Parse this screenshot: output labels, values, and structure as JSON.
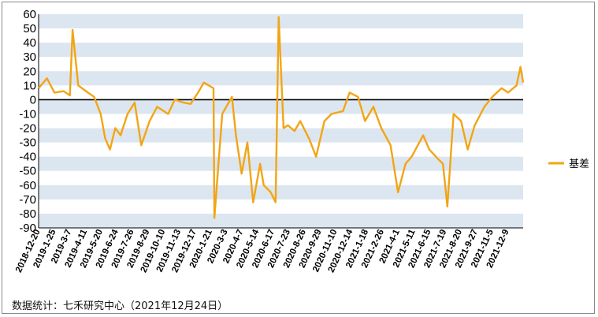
{
  "footer": {
    "source": "数据统计：七禾研究中心（2021年12月24日）"
  },
  "chart_data": {
    "type": "line",
    "title": "",
    "xlabel": "",
    "ylabel": "",
    "ylim": [
      -90,
      60
    ],
    "yticks": [
      60,
      50,
      40,
      30,
      20,
      10,
      0,
      -10,
      -20,
      -30,
      -40,
      -50,
      -60,
      -70,
      -80,
      -90
    ],
    "grid": "horizontal alternating bands",
    "legend_position": "right",
    "colors": {
      "series": "#F2A514",
      "band": "#DCE6F1",
      "zero_line": "#000000"
    },
    "x_tick_labels": [
      "2018-12-20",
      "2019-1-25",
      "2019-3-7",
      "2019-4-11",
      "2019-5-20",
      "2019-6-24",
      "2019-7-26",
      "2019-8-29",
      "2019-10-10",
      "2019-11-13",
      "2019-12-17",
      "2020-1-21",
      "2020-3-3",
      "2020-4-7",
      "2020-5-14",
      "2020-6-17",
      "2020-7-23",
      "2020-8-26",
      "2020-9-29",
      "2020-11-10",
      "2020-12-14",
      "2021-1-18",
      "2021-2-26",
      "2021-4-1",
      "2021-5-11",
      "2021-6-15",
      "2021-7-19",
      "2021-8-20",
      "2021-9-27",
      "2021-11-5",
      "2021-12-9"
    ],
    "series": [
      {
        "name": "基差",
        "color": "#F2A514",
        "x": [
          "2018-12-20",
          "2019-1-8",
          "2019-1-25",
          "2019-2-15",
          "2019-3-1",
          "2019-3-7",
          "2019-3-20",
          "2019-4-11",
          "2019-4-25",
          "2019-5-10",
          "2019-5-20",
          "2019-5-31",
          "2019-6-12",
          "2019-6-24",
          "2019-7-10",
          "2019-7-26",
          "2019-8-10",
          "2019-8-29",
          "2019-9-15",
          "2019-10-10",
          "2019-10-25",
          "2019-11-13",
          "2019-11-30",
          "2019-12-17",
          "2019-12-30",
          "2020-1-21",
          "2020-1-23",
          "2020-2-10",
          "2020-3-3",
          "2020-3-12",
          "2020-3-25",
          "2020-4-7",
          "2020-4-20",
          "2020-5-6",
          "2020-5-14",
          "2020-5-30",
          "2020-6-10",
          "2020-6-17",
          "2020-6-28",
          "2020-7-8",
          "2020-7-23",
          "2020-8-5",
          "2020-8-26",
          "2020-9-10",
          "2020-9-29",
          "2020-10-15",
          "2020-11-10",
          "2020-11-25",
          "2020-12-14",
          "2020-12-30",
          "2021-1-18",
          "2021-2-5",
          "2021-2-26",
          "2021-3-15",
          "2021-4-1",
          "2021-4-15",
          "2021-5-11",
          "2021-5-25",
          "2021-6-15",
          "2021-6-25",
          "2021-7-5",
          "2021-7-19",
          "2021-8-5",
          "2021-8-20",
          "2021-9-5",
          "2021-9-27",
          "2021-10-15",
          "2021-11-5",
          "2021-11-20",
          "2021-12-9",
          "2021-12-18",
          "2021-12-24"
        ],
        "values": [
          8,
          15,
          5,
          6,
          3,
          49,
          10,
          5,
          2,
          -10,
          -27,
          -35,
          -20,
          -25,
          -10,
          -2,
          -32,
          -15,
          -5,
          -10,
          0,
          -2,
          -3,
          5,
          12,
          8,
          -83,
          -10,
          2,
          -25,
          -52,
          -30,
          -72,
          -45,
          -60,
          -65,
          -72,
          58,
          -20,
          -18,
          -22,
          -15,
          -28,
          -40,
          -15,
          -10,
          -8,
          5,
          2,
          -15,
          -5,
          -20,
          -32,
          -65,
          -45,
          -40,
          -25,
          -35,
          -42,
          -45,
          -75,
          -10,
          -15,
          -35,
          -18,
          -5,
          2,
          8,
          5,
          10,
          23,
          12
        ]
      }
    ]
  }
}
